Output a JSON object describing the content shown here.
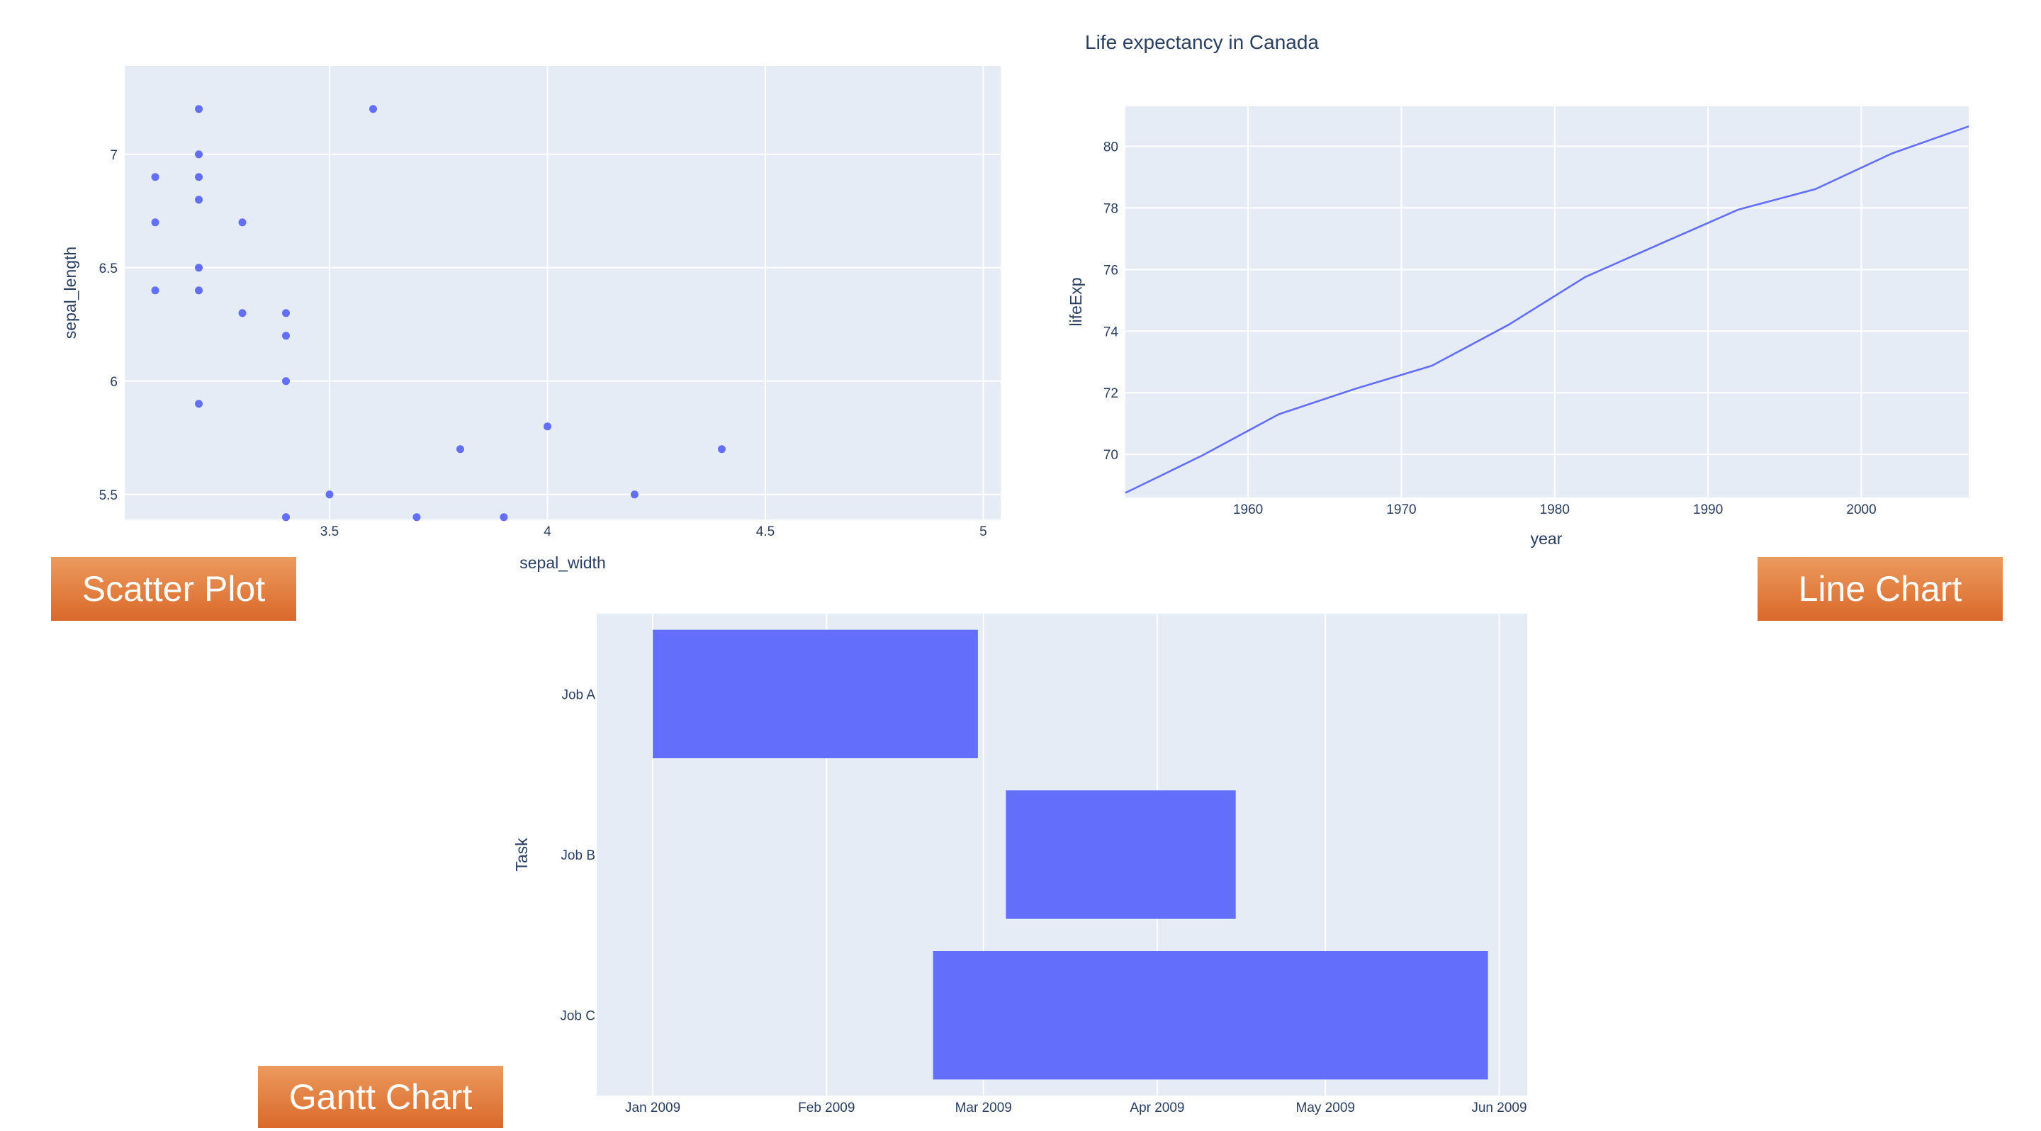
{
  "colors": {
    "plot_bg": "#e5ecf6",
    "grid": "#ffffff",
    "marker": "#636efa",
    "text": "#2a3f5f",
    "banner_top": "#ec9a5e",
    "banner_bottom": "#d9692a"
  },
  "banners": {
    "scatter": "Scatter Plot",
    "line": "Line Chart",
    "gantt": "Gantt Chart"
  },
  "chart_data": [
    {
      "type": "scatter",
      "xlabel": "sepal_width",
      "ylabel": "sepal_length",
      "xlim": [
        3.03,
        5.04
      ],
      "ylim": [
        5.39,
        7.39
      ],
      "xticks": [
        3.5,
        4,
        4.5,
        5
      ],
      "xtick_labels": [
        "3.5",
        "4",
        "4.5",
        "5"
      ],
      "yticks": [
        5.5,
        6,
        6.5,
        7
      ],
      "ytick_labels": [
        "5.5",
        "6",
        "6.5",
        "7"
      ],
      "grid": true,
      "points": [
        [
          3.1,
          6.9
        ],
        [
          3.1,
          6.7
        ],
        [
          3.1,
          6.4
        ],
        [
          3.2,
          7.2
        ],
        [
          3.2,
          7.0
        ],
        [
          3.2,
          6.9
        ],
        [
          3.2,
          6.8
        ],
        [
          3.2,
          6.5
        ],
        [
          3.2,
          6.4
        ],
        [
          3.2,
          5.9
        ],
        [
          3.3,
          6.7
        ],
        [
          3.3,
          6.3
        ],
        [
          3.4,
          6.3
        ],
        [
          3.4,
          6.2
        ],
        [
          3.4,
          6.0
        ],
        [
          3.4,
          5.4
        ],
        [
          3.5,
          5.5
        ],
        [
          3.6,
          7.2
        ],
        [
          3.7,
          5.4
        ],
        [
          3.8,
          5.7
        ],
        [
          3.9,
          5.4
        ],
        [
          4.0,
          5.8
        ],
        [
          4.2,
          5.5
        ],
        [
          4.4,
          5.7
        ]
      ]
    },
    {
      "type": "line",
      "title": "Life expectancy in Canada",
      "xlabel": "year",
      "ylabel": "lifeExp",
      "xlim": [
        1952,
        2007
      ],
      "ylim": [
        68.6,
        81.3
      ],
      "xticks": [
        1960,
        1970,
        1980,
        1990,
        2000
      ],
      "xtick_labels": [
        "1960",
        "1970",
        "1980",
        "1990",
        "2000"
      ],
      "yticks": [
        70,
        72,
        74,
        76,
        78,
        80
      ],
      "ytick_labels": [
        "70",
        "72",
        "74",
        "76",
        "78",
        "80"
      ],
      "grid": true,
      "x": [
        1952,
        1957,
        1962,
        1967,
        1972,
        1977,
        1982,
        1987,
        1992,
        1997,
        2002,
        2007
      ],
      "y": [
        68.75,
        69.96,
        71.3,
        72.13,
        72.88,
        74.21,
        75.76,
        76.86,
        77.95,
        78.61,
        79.77,
        80.65
      ]
    },
    {
      "type": "bar",
      "orientation": "timeline",
      "ylabel": "Task",
      "categories": [
        "Job A",
        "Job B",
        "Job C"
      ],
      "xlim": [
        "2008-12-22",
        "2009-06-06"
      ],
      "xticks": [
        "2009-01-01",
        "2009-02-01",
        "2009-03-01",
        "2009-04-01",
        "2009-05-01",
        "2009-06-01"
      ],
      "xtick_labels": [
        "Jan 2009",
        "Feb 2009",
        "Mar 2009",
        "Apr 2009",
        "May 2009",
        "Jun 2009"
      ],
      "grid": true,
      "bars": [
        {
          "task": "Job A",
          "start": "2009-01-01",
          "finish": "2009-02-28"
        },
        {
          "task": "Job B",
          "start": "2009-03-05",
          "finish": "2009-04-15"
        },
        {
          "task": "Job C",
          "start": "2009-02-20",
          "finish": "2009-05-30"
        }
      ]
    }
  ]
}
